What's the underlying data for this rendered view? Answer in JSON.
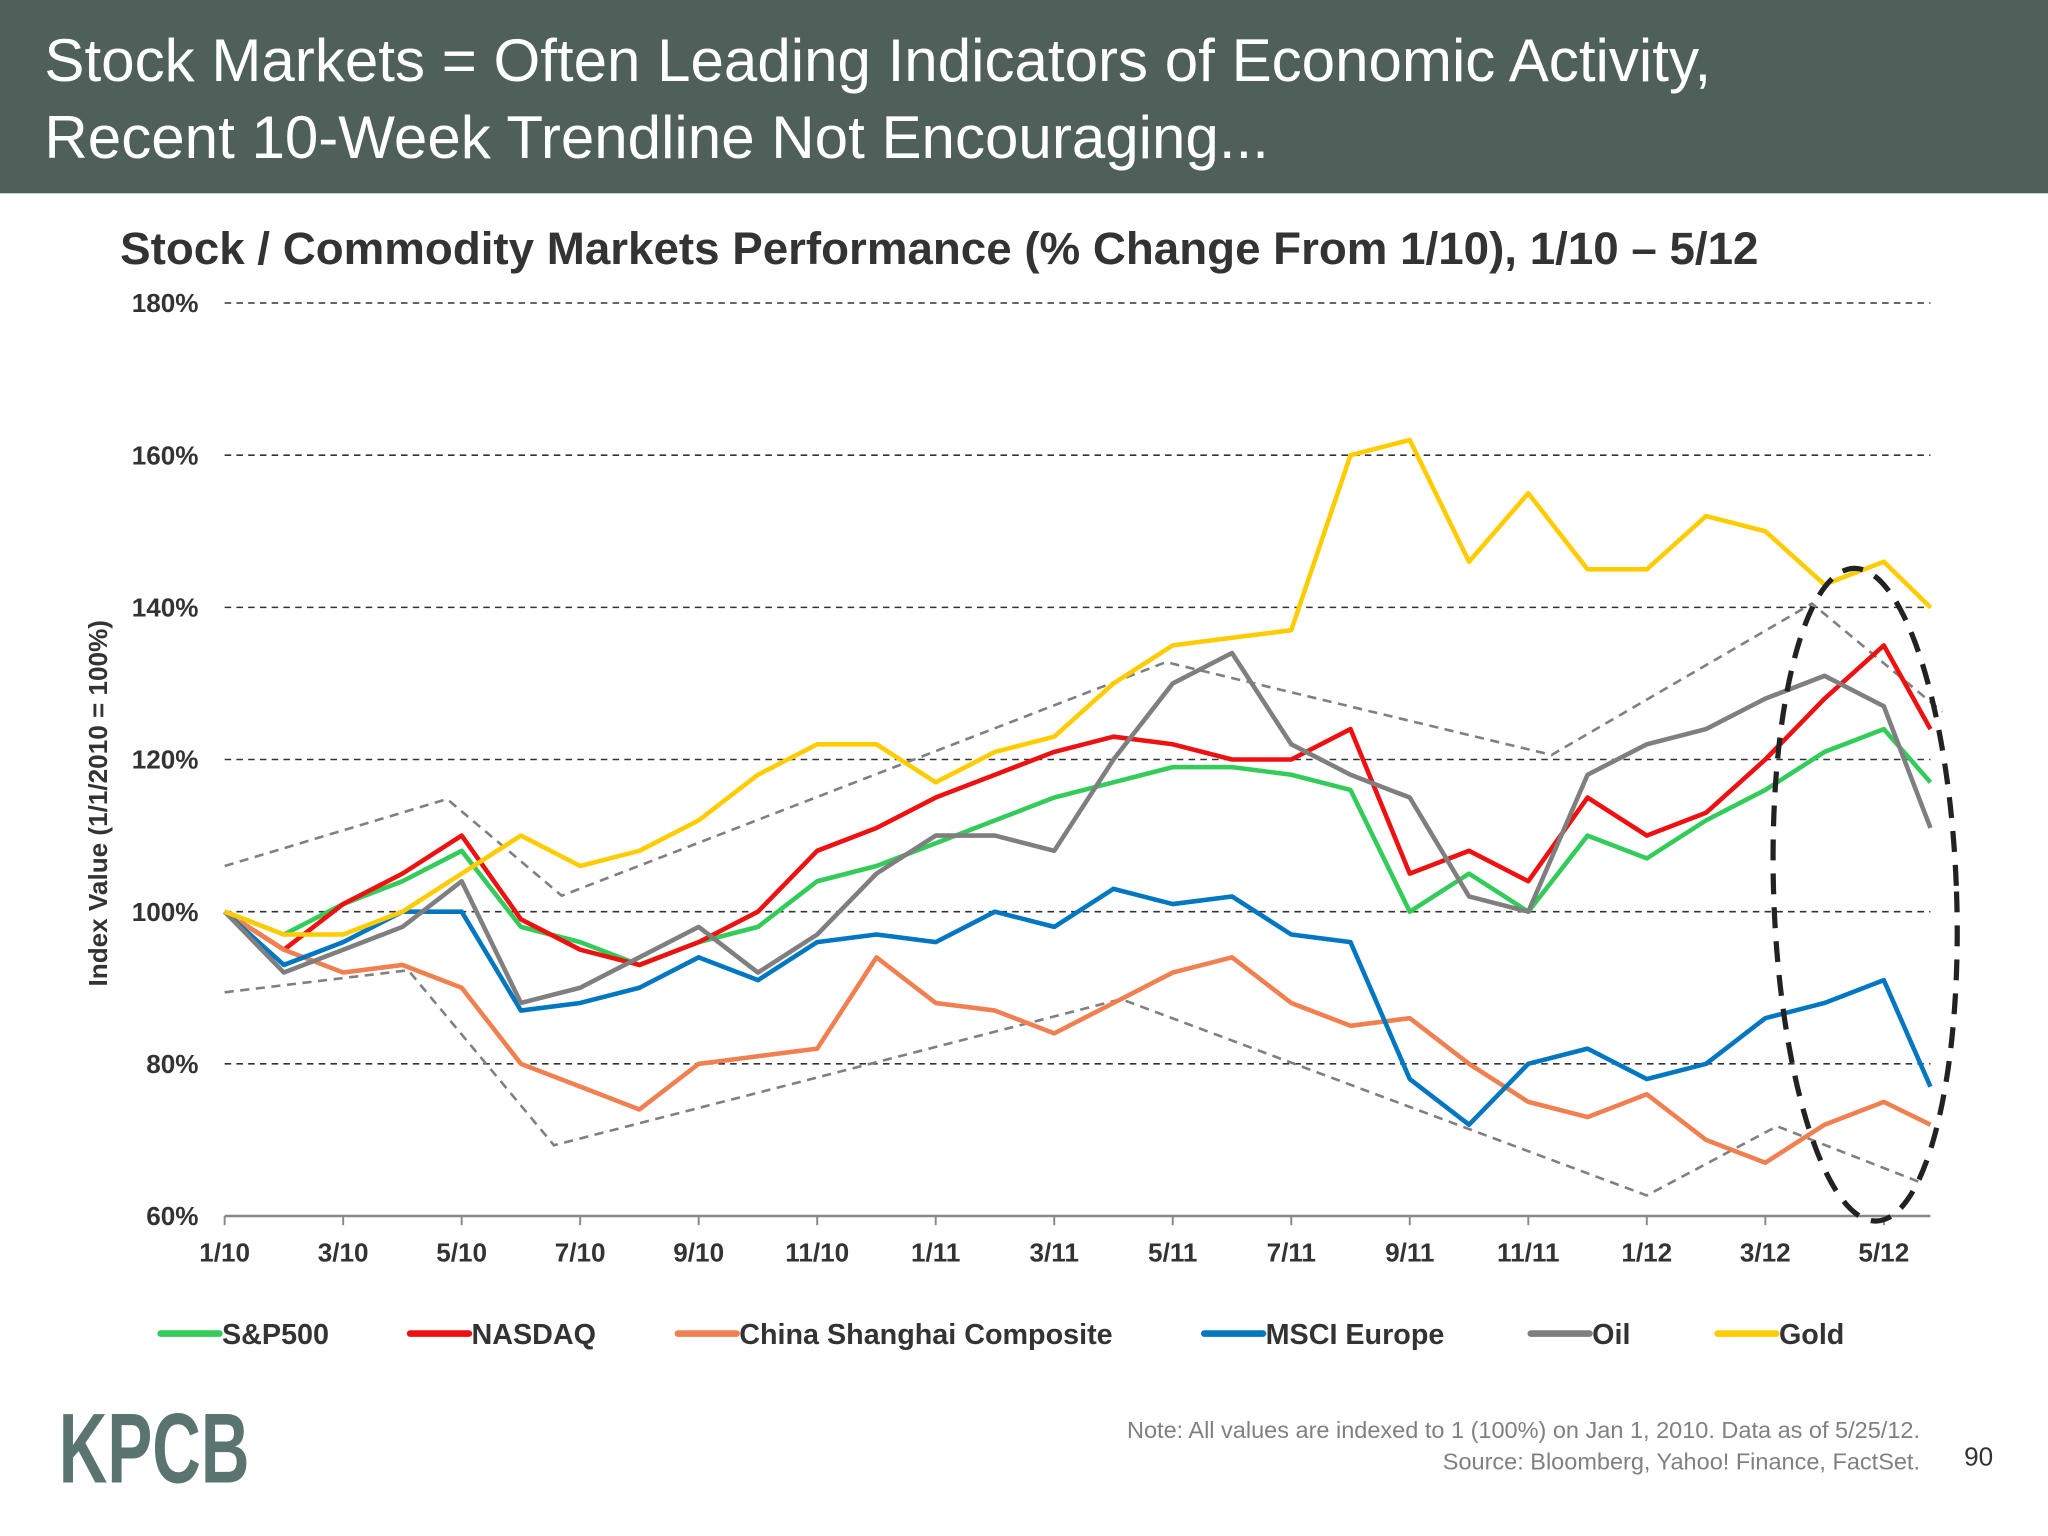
{
  "header": {
    "title_line1": "Stock Markets = Often Leading Indicators of Economic Activity,",
    "title_line2": "Recent 10-Week Trendline Not Encouraging...",
    "background": "#4f5f5a"
  },
  "chart_data": {
    "type": "line",
    "title": "Stock / Commodity Markets Performance (% Change From 1/10), 1/10 – 5/12",
    "ylabel": "Index Value (1/1/2010 = 100%)",
    "xlabel": "",
    "ylim": [
      60,
      180
    ],
    "xlim": [
      "2010-01-01",
      "2012-05-25"
    ],
    "yticks": [
      {
        "v": 60,
        "label": "60%"
      },
      {
        "v": 80,
        "label": "80%"
      },
      {
        "v": 100,
        "label": "100%"
      },
      {
        "v": 120,
        "label": "120%"
      },
      {
        "v": 140,
        "label": "140%"
      },
      {
        "v": 160,
        "label": "160%"
      },
      {
        "v": 180,
        "label": "180%"
      }
    ],
    "xticks": [
      {
        "d": "2010-01-01",
        "label": "1/10"
      },
      {
        "d": "2010-03-01",
        "label": "3/10"
      },
      {
        "d": "2010-05-01",
        "label": "5/10"
      },
      {
        "d": "2010-07-01",
        "label": "7/10"
      },
      {
        "d": "2010-09-01",
        "label": "9/10"
      },
      {
        "d": "2010-11-01",
        "label": "11/10"
      },
      {
        "d": "2011-01-01",
        "label": "1/11"
      },
      {
        "d": "2011-03-01",
        "label": "3/11"
      },
      {
        "d": "2011-05-01",
        "label": "5/11"
      },
      {
        "d": "2011-07-01",
        "label": "7/11"
      },
      {
        "d": "2011-09-01",
        "label": "9/11"
      },
      {
        "d": "2011-11-01",
        "label": "11/11"
      },
      {
        "d": "2012-01-01",
        "label": "1/12"
      },
      {
        "d": "2012-03-01",
        "label": "3/12"
      },
      {
        "d": "2012-05-01",
        "label": "5/12"
      }
    ],
    "grid": "horizontal dashed",
    "legend_position": "bottom",
    "dates": [
      "2010-01-01",
      "2010-02-01",
      "2010-03-01",
      "2010-04-01",
      "2010-05-01",
      "2010-06-01",
      "2010-07-01",
      "2010-08-01",
      "2010-09-01",
      "2010-10-01",
      "2010-11-01",
      "2010-12-01",
      "2011-01-01",
      "2011-02-01",
      "2011-03-01",
      "2011-04-01",
      "2011-05-01",
      "2011-06-01",
      "2011-07-01",
      "2011-08-01",
      "2011-09-01",
      "2011-10-01",
      "2011-11-01",
      "2011-12-01",
      "2012-01-01",
      "2012-02-01",
      "2012-03-01",
      "2012-04-01",
      "2012-05-01",
      "2012-05-25"
    ],
    "series": [
      {
        "name": "S&P500",
        "color": "#33cc5a",
        "values": [
          100,
          97,
          101,
          104,
          108,
          98,
          96,
          93,
          96,
          98,
          104,
          106,
          109,
          112,
          115,
          117,
          119,
          119,
          118,
          116,
          100,
          105,
          100,
          110,
          107,
          112,
          116,
          121,
          124,
          117
        ]
      },
      {
        "name": "NASDAQ",
        "color": "#ee1111",
        "values": [
          100,
          95,
          101,
          105,
          110,
          99,
          95,
          93,
          96,
          100,
          108,
          111,
          115,
          118,
          121,
          123,
          122,
          120,
          120,
          124,
          105,
          108,
          104,
          115,
          110,
          113,
          120,
          128,
          135,
          124
        ]
      },
      {
        "name": "China Shanghai Composite",
        "color": "#f08050",
        "values": [
          100,
          95,
          92,
          93,
          90,
          80,
          77,
          74,
          80,
          81,
          82,
          94,
          88,
          87,
          84,
          88,
          92,
          94,
          88,
          85,
          86,
          80,
          75,
          73,
          76,
          70,
          67,
          72,
          75,
          72
        ]
      },
      {
        "name": "MSCI Europe",
        "color": "#0077c0",
        "values": [
          100,
          93,
          96,
          100,
          100,
          87,
          88,
          90,
          94,
          91,
          96,
          97,
          96,
          100,
          98,
          103,
          101,
          102,
          97,
          96,
          78,
          72,
          80,
          82,
          78,
          80,
          86,
          88,
          91,
          77
        ]
      },
      {
        "name": "Oil",
        "color": "#7f7f7f",
        "values": [
          100,
          92,
          95,
          98,
          104,
          88,
          90,
          94,
          98,
          92,
          97,
          105,
          110,
          110,
          108,
          120,
          130,
          134,
          122,
          118,
          115,
          102,
          100,
          118,
          122,
          124,
          128,
          131,
          127,
          111
        ]
      },
      {
        "name": "Gold",
        "color": "#ffcc00",
        "values": [
          100,
          97,
          97,
          100,
          105,
          110,
          106,
          108,
          112,
          118,
          122,
          122,
          117,
          121,
          123,
          130,
          135,
          136,
          137,
          160,
          162,
          146,
          155,
          145,
          145,
          152,
          150,
          143,
          146,
          140
        ]
      }
    ],
    "trendlines": [
      {
        "points": [
          [
            "2010-01-01",
            106
          ],
          [
            "2010-04-24",
            114.8
          ],
          [
            "2010-06-22",
            102.1
          ],
          [
            "2011-04-28",
            132.8
          ],
          [
            "2011-11-13",
            120.6
          ],
          [
            "2012-03-25",
            140.5
          ],
          [
            "2012-05-31",
            126.3
          ]
        ]
      },
      {
        "points": [
          [
            "2010-01-01",
            89.4
          ],
          [
            "2010-04-04",
            92.3
          ],
          [
            "2010-06-18",
            69.3
          ],
          [
            "2011-04-05",
            88.5
          ],
          [
            "2012-01-01",
            62.7
          ],
          [
            "2012-03-07",
            71.8
          ],
          [
            "2012-05-19",
            64.5
          ]
        ]
      }
    ]
  },
  "footer": {
    "logo": "KPCB",
    "note_line1": "Note: All values are indexed to 1 (100%) on Jan 1, 2010. Data as of 5/25/12.",
    "note_line2": "Source: Bloomberg, Yahoo! Finance, FactSet.",
    "page_number": "90"
  }
}
